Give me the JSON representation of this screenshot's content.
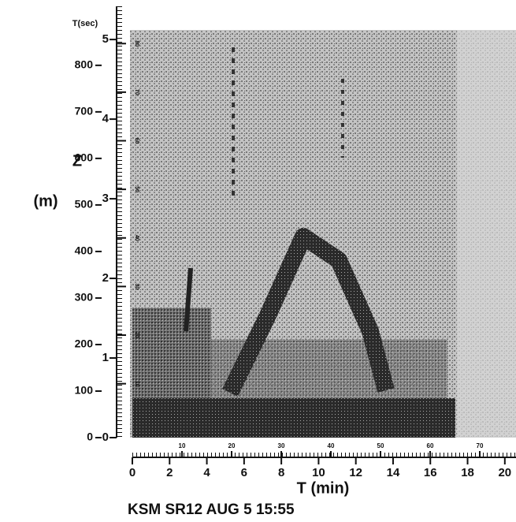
{
  "chart_data": {
    "type": "image",
    "title": "KSM SR12 AUG 5 15:55",
    "x_label": "T (min)",
    "y_label": "Z",
    "y_unit": "(m)",
    "y2_label": "T(sec)",
    "xlim": [
      0,
      20.6
    ],
    "xticks": [
      0,
      2,
      4,
      6,
      8,
      10,
      12,
      14,
      16,
      18,
      20
    ],
    "ylim": [
      0,
      876
    ],
    "yticks": [
      0,
      100,
      200,
      300,
      400,
      500,
      600,
      700,
      800
    ],
    "y2lim": [
      0,
      5.12
    ],
    "y2ticks": [
      0,
      1,
      2,
      3,
      4,
      5
    ],
    "x2lim": [
      0,
      77.3
    ],
    "x2ticks": [
      10,
      20,
      30,
      40,
      50,
      60,
      70
    ],
    "y3lim": [
      -1.1,
      82.8
    ],
    "y3ticks": [
      10,
      20,
      30,
      40,
      50,
      60,
      70,
      80
    ]
  }
}
